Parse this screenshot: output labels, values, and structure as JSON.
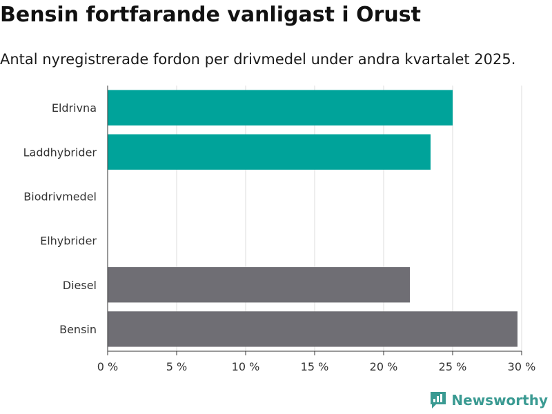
{
  "title": "Bensin fortfarande vanligast i Orust",
  "subtitle": "Antal nyregistrerade fordon per drivmedel under andra kvartalet 2025.",
  "brand": {
    "name": "Newsworthy",
    "color": "#3a9a92"
  },
  "chart_data": {
    "type": "bar",
    "orientation": "horizontal",
    "categories": [
      "Eldrivna",
      "Laddhybrider",
      "Biodrivmedel",
      "Elhybrider",
      "Diesel",
      "Bensin"
    ],
    "values": [
      25.0,
      23.4,
      0,
      0,
      21.9,
      29.7
    ],
    "colors": [
      "#00a39a",
      "#00a39a",
      "#00a39a",
      "#00a39a",
      "#6f6e74",
      "#6f6e74"
    ],
    "xlim": [
      0,
      30
    ],
    "xticks": [
      0,
      5,
      10,
      15,
      20,
      25,
      30
    ],
    "xtick_labels": [
      "0 %",
      "5 %",
      "10 %",
      "15 %",
      "20 %",
      "25 %",
      "30 %"
    ],
    "grid": true,
    "xlabel": "",
    "ylabel": ""
  }
}
